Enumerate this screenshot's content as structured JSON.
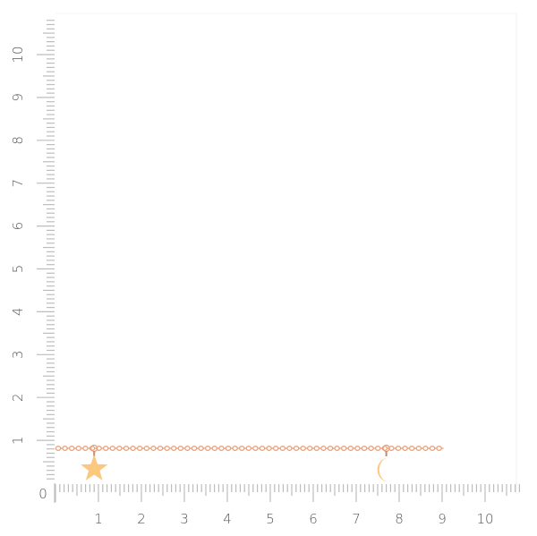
{
  "ruler": {
    "unit_labels_x": [
      "0",
      "1",
      "2",
      "3",
      "4",
      "5",
      "6",
      "7",
      "8",
      "9",
      "10"
    ],
    "unit_labels_y": [
      "1",
      "2",
      "3",
      "4",
      "5",
      "6",
      "7",
      "8",
      "9",
      "10"
    ],
    "tick_color": "#bdbdbd",
    "label_color": "#555555"
  },
  "product": {
    "chain_color": "#e8a27a",
    "charm_color": "#fcc77e",
    "charms": [
      {
        "name": "star",
        "position_cm": 0.9
      },
      {
        "name": "crescent-moon",
        "position_cm": 7.7
      }
    ],
    "chain_length_cm": 9
  }
}
